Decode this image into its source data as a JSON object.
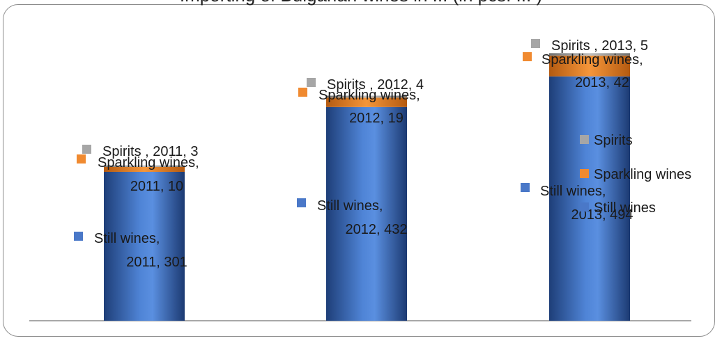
{
  "chart_data": {
    "type": "bar",
    "stacked": true,
    "title": "Importing of Bulgarian wines in ... (in pcs. ... )",
    "categories": [
      "2011",
      "2012",
      "2013"
    ],
    "series": [
      {
        "name": "Still wines",
        "color": "#4a78c8",
        "values": [
          301,
          432,
          494
        ]
      },
      {
        "name": "Sparkling wines",
        "color": "#f08a30",
        "values": [
          10,
          19,
          42
        ]
      },
      {
        "name": "Spirits",
        "color": "#a6a6a6",
        "values": [
          3,
          4,
          5
        ]
      }
    ],
    "data_labels": {
      "still": [
        "Still wines, 2011, 301",
        "Still wines, 2012, 432",
        "Still wines, 2013, 494"
      ],
      "sparkling": [
        "Sparkling wines, 2011, 10",
        "Sparkling wines, 2012, 19",
        "Sparkling wines, 2013, 42"
      ],
      "spirits": [
        "Spirits , 2011, 3",
        "Spirits , 2012, 4",
        "Spirits , 2013, 5"
      ]
    },
    "legend": [
      "Spirits",
      "Sparkling wines",
      "Still wines"
    ],
    "legend_position": "right",
    "ylim": [
      0,
      600
    ],
    "grid": false
  }
}
